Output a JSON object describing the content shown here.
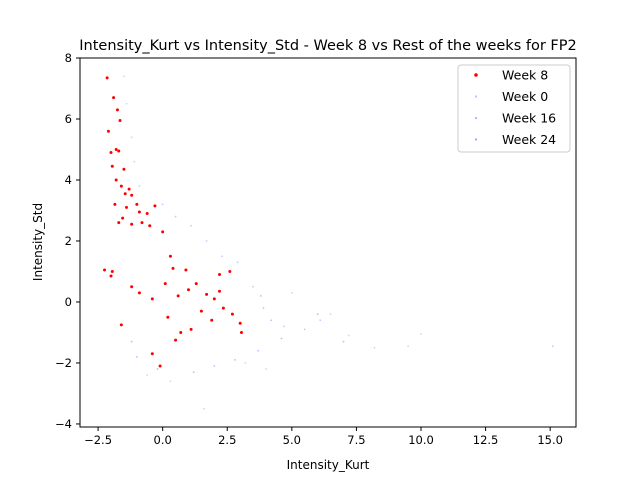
{
  "chart_data": {
    "type": "scatter",
    "title": "Intensity_Kurt vs Intensity_Std - Week 8 vs Rest of the weeks for FP2",
    "xlabel": "Intensity_Kurt",
    "ylabel": "Intensity_Std",
    "xlim": [
      -3.2,
      16.0
    ],
    "ylim": [
      -4.1,
      8.0
    ],
    "xticks": [
      -2.5,
      0.0,
      2.5,
      5.0,
      7.5,
      10.0,
      12.5,
      15.0
    ],
    "xtick_labels": [
      "−2.5",
      "0.0",
      "2.5",
      "5.0",
      "7.5",
      "10.0",
      "12.5",
      "15.0"
    ],
    "yticks": [
      -4,
      -2,
      0,
      2,
      4,
      6,
      8
    ],
    "ytick_labels": [
      "−4",
      "−2",
      "0",
      "2",
      "4",
      "6",
      "8"
    ],
    "grid": false,
    "legend_position": "top-right",
    "series": [
      {
        "name": "Week 8",
        "color": "#ff0000",
        "marker": "dot",
        "alpha": 1.0,
        "points": [
          [
            -2.15,
            7.35
          ],
          [
            -1.9,
            6.7
          ],
          [
            -1.75,
            6.3
          ],
          [
            -2.1,
            5.6
          ],
          [
            -1.65,
            5.95
          ],
          [
            -1.8,
            5.0
          ],
          [
            -2.0,
            4.9
          ],
          [
            -1.7,
            4.95
          ],
          [
            -1.95,
            4.45
          ],
          [
            -1.5,
            4.35
          ],
          [
            -1.8,
            4.0
          ],
          [
            -1.6,
            3.8
          ],
          [
            -1.3,
            3.7
          ],
          [
            -1.45,
            3.55
          ],
          [
            -1.2,
            3.5
          ],
          [
            -1.85,
            3.2
          ],
          [
            -1.4,
            3.1
          ],
          [
            -1.0,
            3.2
          ],
          [
            -0.9,
            2.95
          ],
          [
            -0.6,
            2.9
          ],
          [
            -0.3,
            3.15
          ],
          [
            -1.7,
            2.6
          ],
          [
            -1.55,
            2.75
          ],
          [
            -1.2,
            2.55
          ],
          [
            -0.8,
            2.6
          ],
          [
            -0.5,
            2.5
          ],
          [
            0.0,
            2.3
          ],
          [
            0.3,
            1.5
          ],
          [
            0.4,
            1.1
          ],
          [
            0.9,
            1.05
          ],
          [
            1.3,
            0.6
          ],
          [
            1.7,
            0.25
          ],
          [
            2.0,
            0.1
          ],
          [
            2.2,
            0.35
          ],
          [
            2.35,
            -0.2
          ],
          [
            2.7,
            -0.4
          ],
          [
            3.0,
            -0.7
          ],
          [
            3.05,
            -1.0
          ],
          [
            2.6,
            1.0
          ],
          [
            2.2,
            0.9
          ],
          [
            1.9,
            -0.6
          ],
          [
            0.7,
            -1.0
          ],
          [
            -0.1,
            -2.1
          ],
          [
            -0.4,
            -1.7
          ],
          [
            0.5,
            -1.25
          ],
          [
            -1.6,
            -0.75
          ],
          [
            -2.0,
            0.85
          ],
          [
            -2.25,
            1.05
          ],
          [
            -1.95,
            1.0
          ],
          [
            1.1,
            -0.9
          ],
          [
            -1.2,
            0.5
          ],
          [
            -0.9,
            0.3
          ],
          [
            -0.4,
            0.1
          ],
          [
            0.1,
            0.6
          ],
          [
            0.6,
            0.2
          ],
          [
            1.5,
            -0.3
          ],
          [
            1.0,
            0.4
          ],
          [
            0.2,
            -0.5
          ]
        ]
      },
      {
        "name": "Week 0",
        "color": "#8080ff",
        "marker": "dot",
        "alpha": 0.35,
        "points": [
          [
            -1.5,
            7.4
          ],
          [
            -1.4,
            6.5
          ],
          [
            -1.2,
            5.4
          ],
          [
            -1.1,
            4.6
          ],
          [
            -0.9,
            3.8
          ],
          [
            5.0,
            0.3
          ],
          [
            6.5,
            -0.4
          ],
          [
            7.2,
            -1.1
          ],
          [
            8.2,
            -1.5
          ],
          [
            9.5,
            -1.45
          ],
          [
            10.0,
            -1.05
          ],
          [
            4.0,
            -2.2
          ],
          [
            3.2,
            -2.0
          ],
          [
            1.6,
            -3.5
          ],
          [
            0.3,
            -2.6
          ],
          [
            -0.6,
            -2.4
          ]
        ]
      },
      {
        "name": "Week 16",
        "color": "#6060ff",
        "marker": "dot",
        "alpha": 0.35,
        "points": [
          [
            15.1,
            -1.45
          ],
          [
            6.1,
            -0.6
          ],
          [
            5.5,
            -0.9
          ],
          [
            4.7,
            -0.8
          ],
          [
            3.9,
            -0.2
          ],
          [
            3.5,
            0.5
          ],
          [
            2.9,
            1.3
          ],
          [
            2.3,
            1.5
          ],
          [
            1.7,
            2.0
          ],
          [
            1.1,
            2.5
          ],
          [
            0.5,
            2.8
          ],
          [
            0.0,
            3.2
          ]
        ]
      },
      {
        "name": "Week 24",
        "color": "#4040ff",
        "marker": "dot",
        "alpha": 0.35,
        "points": [
          [
            7.0,
            -1.3
          ],
          [
            6.0,
            -0.4
          ],
          [
            4.6,
            -1.2
          ],
          [
            4.2,
            -0.6
          ],
          [
            3.7,
            -1.6
          ],
          [
            2.8,
            -1.9
          ],
          [
            2.0,
            -2.1
          ],
          [
            -1.0,
            -1.8
          ],
          [
            -1.2,
            -1.3
          ],
          [
            -0.2,
            -2.2
          ],
          [
            1.2,
            -2.3
          ],
          [
            3.8,
            0.2
          ]
        ]
      }
    ]
  }
}
